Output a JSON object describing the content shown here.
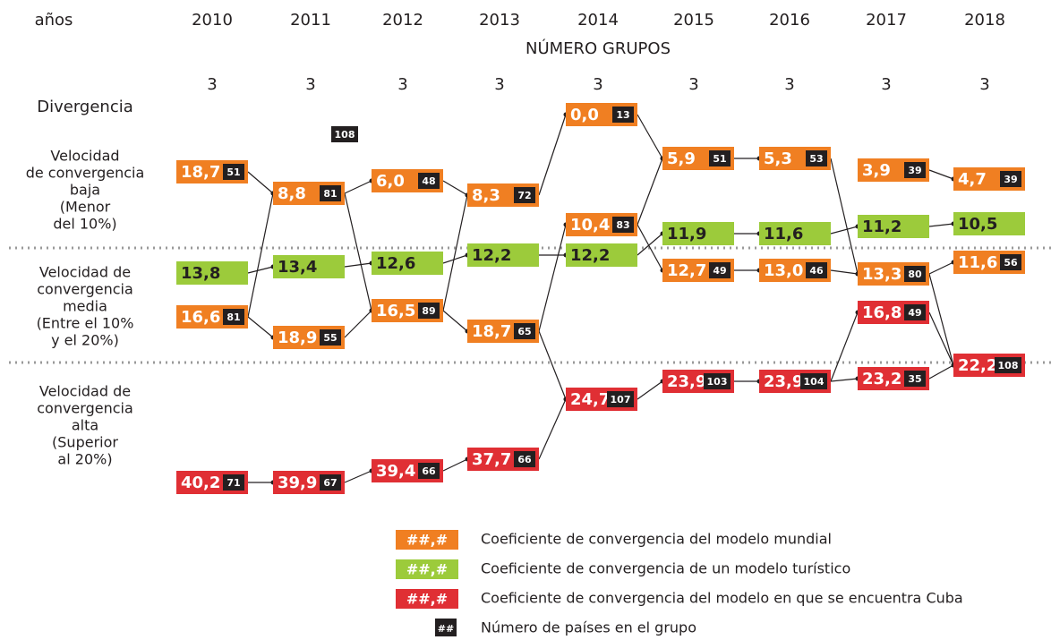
{
  "header": {
    "corner": "años",
    "years": [
      "2010",
      "2011",
      "2012",
      "2013",
      "2014",
      "2015",
      "2016",
      "2017",
      "2018"
    ],
    "title": "NÚMERO GRUPOS",
    "groups": [
      "3",
      "3",
      "3",
      "3",
      "3",
      "3",
      "3",
      "3",
      "3"
    ]
  },
  "rows": [
    {
      "lines": [
        "Divergencia"
      ]
    },
    {
      "lines": [
        "Velocidad",
        "de convergencia",
        "baja",
        "(Menor",
        "del 10%)"
      ]
    },
    {
      "lines": [
        "Velocidad de",
        "convergencia",
        "media",
        "(Entre el 10%",
        "y el 20%)"
      ]
    },
    {
      "lines": [
        "Velocidad de",
        "convergencia",
        "alta",
        "(Superior",
        "al 20%)"
      ]
    }
  ],
  "nodes": [
    {
      "value": "18,7",
      "count": "51",
      "color": "#f07f22"
    },
    {
      "value": "13,8",
      "color": "#9ccb3b"
    },
    {
      "value": "16,6",
      "count": "81",
      "color": "#f07f22"
    },
    {
      "value": "40,2",
      "count": "71",
      "color": "#e02f34"
    },
    {
      "value": "8,8",
      "count": "81",
      "color": "#f07f22"
    },
    {
      "value": "13,4",
      "color": "#9ccb3b"
    },
    {
      "value": "18,9",
      "count": "55",
      "color": "#f07f22"
    },
    {
      "value": "39,9",
      "count": "67",
      "color": "#e02f34"
    },
    {
      "count": "108"
    },
    {
      "value": "6,0",
      "count": "48",
      "color": "#f07f22"
    },
    {
      "value": "12,6",
      "color": "#9ccb3b"
    },
    {
      "value": "16,5",
      "count": "89",
      "color": "#f07f22"
    },
    {
      "value": "39,4",
      "count": "66",
      "color": "#e02f34"
    },
    {
      "value": "8,3",
      "count": "72",
      "color": "#f07f22"
    },
    {
      "value": "12,2",
      "color": "#9ccb3b"
    },
    {
      "value": "18,7",
      "count": "65",
      "color": "#f07f22"
    },
    {
      "value": "37,7",
      "count": "66",
      "color": "#e02f34"
    },
    {
      "value": "0,0",
      "count": "13",
      "color": "#f07f22"
    },
    {
      "value": "10,4",
      "count": "83",
      "color": "#f07f22"
    },
    {
      "value": "12,2",
      "color": "#9ccb3b"
    },
    {
      "value": "24,7",
      "count": "107",
      "color": "#e02f34"
    },
    {
      "value": "5,9",
      "count": "51",
      "color": "#f07f22"
    },
    {
      "value": "11,9",
      "color": "#9ccb3b"
    },
    {
      "value": "12,7",
      "count": "49",
      "color": "#f07f22"
    },
    {
      "value": "23,9",
      "count": "103",
      "color": "#e02f34"
    },
    {
      "value": "5,3",
      "count": "53",
      "color": "#f07f22"
    },
    {
      "value": "11,6",
      "color": "#9ccb3b"
    },
    {
      "value": "13,0",
      "count": "46",
      "color": "#f07f22"
    },
    {
      "value": "23,9",
      "count": "104",
      "color": "#e02f34"
    },
    {
      "value": "3,9",
      "count": "39",
      "color": "#f07f22"
    },
    {
      "value": "11,2",
      "color": "#9ccb3b"
    },
    {
      "value": "13,3",
      "count": "80",
      "color": "#f07f22"
    },
    {
      "value": "16,8",
      "count": "49",
      "color": "#e02f34"
    },
    {
      "value": "23,2",
      "count": "35",
      "color": "#e02f34"
    },
    {
      "value": "4,7",
      "count": "39",
      "color": "#f07f22"
    },
    {
      "value": "10,5",
      "color": "#9ccb3b"
    },
    {
      "value": "11,6",
      "count": "56",
      "color": "#f07f22"
    },
    {
      "value": "22,2",
      "count": "108",
      "color": "#e02f34"
    }
  ],
  "legend": [
    {
      "sample": "##,#",
      "color": "#f07f22",
      "text": "Coeficiente de convergencia del modelo mundial"
    },
    {
      "sample": "##,#",
      "color": "#9ccb3b",
      "text": "Coeficiente de convergencia de un modelo turístico"
    },
    {
      "sample": "##,#",
      "color": "#e02f34",
      "text": "Coeficiente de convergencia del modelo en que se encuentra Cuba"
    },
    {
      "sample": "##",
      "color": "#231f20",
      "text": "Número de países en el grupo"
    }
  ]
}
